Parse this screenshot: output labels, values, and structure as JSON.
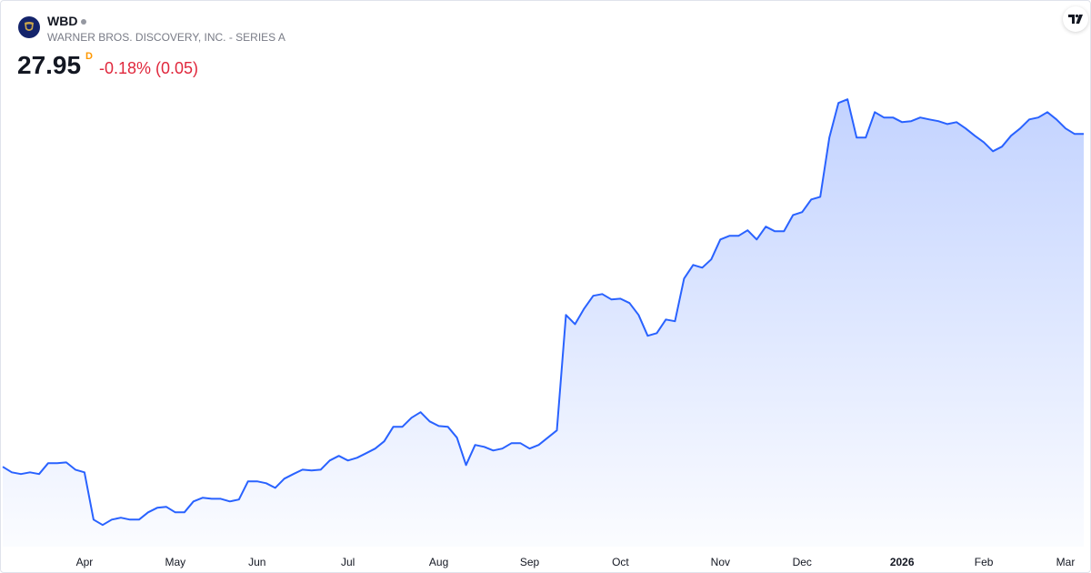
{
  "header": {
    "symbol": "WBD",
    "name": "WARNER BROS. DISCOVERY, INC. - SERIES A",
    "price": 27.95,
    "interval": "D",
    "change": "-0.18% (0.05)"
  },
  "chart_data": {
    "type": "area",
    "color": "#2962ff",
    "categories": [
      null,
      null,
      null,
      null,
      null,
      null,
      null,
      null,
      null,
      "Apr",
      null,
      null,
      null,
      null,
      null,
      null,
      null,
      null,
      null,
      "May",
      null,
      null,
      null,
      null,
      null,
      null,
      null,
      null,
      "Jun",
      null,
      null,
      null,
      null,
      null,
      null,
      null,
      null,
      null,
      "Jul",
      null,
      null,
      null,
      null,
      null,
      null,
      null,
      null,
      null,
      "Aug",
      null,
      null,
      null,
      null,
      null,
      null,
      null,
      null,
      null,
      "Sep",
      null,
      null,
      null,
      null,
      null,
      null,
      null,
      null,
      null,
      "Oct",
      null,
      null,
      null,
      null,
      null,
      null,
      null,
      null,
      null,
      null,
      "Nov",
      null,
      null,
      null,
      null,
      null,
      null,
      null,
      null,
      "Dec",
      null,
      null,
      null,
      null,
      null,
      null,
      null,
      null,
      null,
      null,
      "2026",
      null,
      null,
      null,
      null,
      null,
      null,
      null,
      null,
      "Feb",
      null,
      null,
      null,
      null,
      null,
      null,
      null,
      null,
      "Mar",
      null,
      null
    ],
    "values": [
      10.57,
      10.28,
      10.19,
      10.28,
      10.19,
      10.76,
      10.76,
      10.8,
      10.42,
      10.28,
      7.81,
      7.53,
      7.81,
      7.91,
      7.81,
      7.81,
      8.19,
      8.43,
      8.48,
      8.19,
      8.19,
      8.76,
      8.95,
      8.9,
      8.9,
      8.76,
      8.86,
      9.81,
      9.81,
      9.71,
      9.47,
      9.95,
      10.19,
      10.42,
      10.38,
      10.42,
      10.9,
      11.14,
      10.9,
      11.04,
      11.28,
      11.52,
      11.9,
      12.66,
      12.66,
      13.13,
      13.42,
      12.94,
      12.7,
      12.66,
      12.09,
      10.66,
      11.71,
      11.61,
      11.42,
      11.52,
      11.8,
      11.8,
      11.52,
      11.71,
      12.09,
      12.47,
      18.5,
      18.02,
      18.83,
      19.5,
      19.59,
      19.31,
      19.35,
      19.12,
      18.5,
      17.41,
      17.55,
      18.26,
      18.17,
      20.4,
      21.11,
      20.97,
      21.4,
      22.44,
      22.63,
      22.63,
      22.92,
      22.44,
      23.11,
      22.87,
      22.87,
      23.72,
      23.87,
      24.53,
      24.67,
      27.76,
      29.57,
      29.76,
      27.76,
      27.76,
      29.09,
      28.81,
      28.81,
      28.57,
      28.62,
      28.81,
      28.71,
      28.62,
      28.47,
      28.57,
      28.24,
      27.86,
      27.52,
      27.05,
      27.29,
      27.86,
      28.24,
      28.71,
      28.81,
      29.09,
      28.71,
      28.24,
      27.95,
      27.95
    ],
    "ylim": [
      6.4,
      34.9
    ]
  }
}
